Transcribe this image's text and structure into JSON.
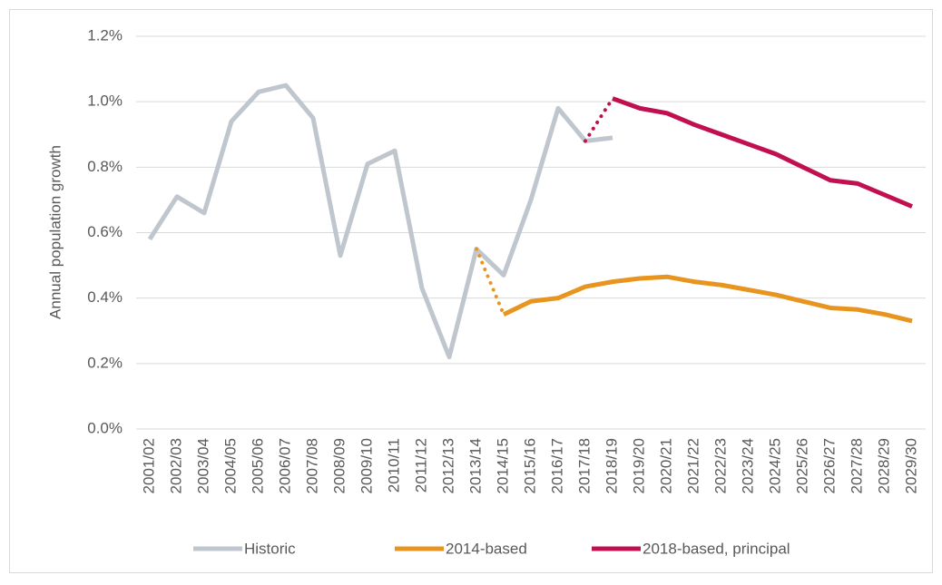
{
  "chart_data": {
    "type": "line",
    "y_label": "Annual population growth",
    "categories": [
      "2001/02",
      "2002/03",
      "2003/04",
      "2004/05",
      "2005/06",
      "2006/07",
      "2007/08",
      "2008/09",
      "2009/10",
      "2010/11",
      "2011/12",
      "2012/13",
      "2013/14",
      "2014/15",
      "2015/16",
      "2016/17",
      "2017/18",
      "2018/19",
      "2019/20",
      "2020/21",
      "2021/22",
      "2022/23",
      "2023/24",
      "2024/25",
      "2025/26",
      "2026/27",
      "2027/28",
      "2028/29",
      "2029/30"
    ],
    "series": [
      {
        "name": "Historic",
        "color": "#bfc6cd",
        "values": [
          0.58,
          0.71,
          0.66,
          0.94,
          1.03,
          1.05,
          0.95,
          0.53,
          0.81,
          0.85,
          0.43,
          0.22,
          0.55,
          0.47,
          0.7,
          0.98,
          0.88,
          0.89,
          null,
          null,
          null,
          null,
          null,
          null,
          null,
          null,
          null,
          null,
          null
        ]
      },
      {
        "name": "2014-based",
        "color": "#e8951f",
        "values": [
          null,
          null,
          null,
          null,
          null,
          null,
          null,
          null,
          null,
          null,
          null,
          null,
          null,
          0.35,
          0.39,
          0.4,
          0.435,
          0.45,
          0.46,
          0.465,
          0.45,
          0.44,
          0.425,
          0.41,
          0.39,
          0.37,
          0.365,
          0.35,
          0.33
        ]
      },
      {
        "name": "2018-based, principal",
        "color": "#c0104f",
        "values": [
          null,
          null,
          null,
          null,
          null,
          null,
          null,
          null,
          null,
          null,
          null,
          null,
          null,
          null,
          null,
          null,
          null,
          1.01,
          0.98,
          0.965,
          0.93,
          0.9,
          0.87,
          0.84,
          0.8,
          0.76,
          0.75,
          0.715,
          0.68
        ]
      }
    ],
    "ylim": [
      0,
      1.2
    ],
    "yticks": [
      {
        "value": 0,
        "label": "0.0%"
      },
      {
        "value": 0.2,
        "label": "0.2%"
      },
      {
        "value": 0.4,
        "label": "0.4%"
      },
      {
        "value": 0.6,
        "label": "0.6%"
      },
      {
        "value": 0.8,
        "label": "0.8%"
      },
      {
        "value": 1.0,
        "label": "1.0%"
      },
      {
        "value": 1.2,
        "label": "1.2%"
      }
    ],
    "grid": true,
    "legend": "bottom"
  }
}
